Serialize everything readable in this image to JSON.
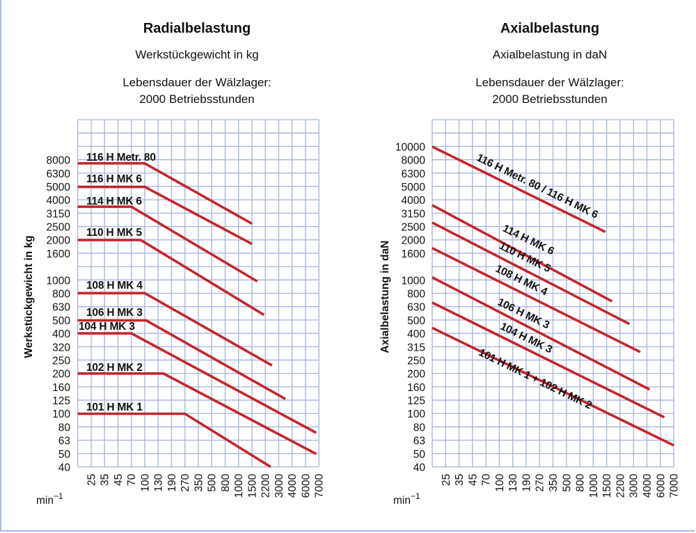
{
  "colors": {
    "grid": "#a3b4da",
    "line": "#c1272d",
    "text": "#111111",
    "frame": "#a9bbdc"
  },
  "chart_data": [
    {
      "type": "line",
      "title": "Radialbelastung",
      "subtitle": "Werkstückgewicht in kg",
      "life_line1": "Lebensdauer der Wälzlager:",
      "life_line2": "2000 Betriebsstunden",
      "ylabel": "Werkstückgewicht in kg",
      "xlabel": "min",
      "xlabel_sup": "−1",
      "y_scale": "log",
      "ylim": [
        40,
        16000
      ],
      "grid": true,
      "x_ticks": [
        "25",
        "35",
        "45",
        "70",
        "100",
        "130",
        "190",
        "270",
        "350",
        "500",
        "800",
        "1000",
        "1500",
        "2200",
        "3000",
        "4000",
        "6000",
        "7000"
      ],
      "y_ticks": [
        "8000",
        "6300",
        "5000",
        "4000",
        "3150",
        "2500",
        "2000",
        "1600",
        "1000",
        "800",
        "630",
        "500",
        "400",
        "320",
        "250",
        "200",
        "160",
        "125",
        "100",
        "80",
        "63",
        "50",
        "40"
      ],
      "series": [
        {
          "name": "116 H Metr. 80",
          "from_axis_start": true,
          "points": [
            [
              100,
              7500
            ],
            [
              1500,
              2650
            ]
          ]
        },
        {
          "name": "116 H MK 6",
          "from_axis_start": true,
          "points": [
            [
              100,
              5000
            ],
            [
              1500,
              1870
            ]
          ]
        },
        {
          "name": "114 H MK 6",
          "from_axis_start": true,
          "points": [
            [
              70,
              3550
            ],
            [
              1780,
              980
            ]
          ]
        },
        {
          "name": "110 H MK 5",
          "from_axis_start": true,
          "points": [
            [
              91,
              2000
            ],
            [
              2130,
              550
            ]
          ]
        },
        {
          "name": "108 H MK 4",
          "from_axis_start": true,
          "points": [
            [
              100,
              800
            ],
            [
              2600,
              230
            ]
          ]
        },
        {
          "name": "106 H MK 3",
          "from_axis_start": true,
          "points": [
            [
              103,
              500
            ],
            [
              3500,
              129
            ]
          ]
        },
        {
          "name": "104 H MK 3",
          "from_axis_start": true,
          "points": [
            [
              70,
              400
            ],
            [
              6800,
              72
            ]
          ]
        },
        {
          "name": "102 H MK 2",
          "from_axis_start": true,
          "points": [
            [
              154,
              200
            ],
            [
              6800,
              50
            ]
          ]
        },
        {
          "name": "101 H MK 1",
          "from_axis_start": true,
          "points": [
            [
              270,
              100
            ],
            [
              2520,
              40
            ]
          ]
        }
      ]
    },
    {
      "type": "line",
      "title": "Axialbelastung",
      "subtitle": "Axialbelastung in daN",
      "life_line1": "Lebensdauer der Wälzlager:",
      "life_line2": "2000 Betriebsstunden",
      "ylabel": "Axialbelastung in daN",
      "xlabel": "min",
      "xlabel_sup": "−1",
      "y_scale": "log",
      "ylim": [
        40,
        16000
      ],
      "grid": true,
      "x_ticks": [
        "25",
        "35",
        "45",
        "70",
        "100",
        "130",
        "190",
        "270",
        "350",
        "500",
        "800",
        "1000",
        "1500",
        "2200",
        "3000",
        "4000",
        "6000",
        "7000"
      ],
      "y_ticks": [
        "10000",
        "8000",
        "6300",
        "5000",
        "4000",
        "3150",
        "2500",
        "2000",
        "1600",
        "1000",
        "800",
        "630",
        "500",
        "400",
        "315",
        "250",
        "200",
        "160",
        "125",
        "100",
        "80",
        "63",
        "50",
        "40"
      ],
      "series": [
        {
          "name": "116 H Metr. 80 / 116 H MK 6",
          "from_axis_start": true,
          "points": [
            [
              1450,
              2300
            ]
          ],
          "start_value": 10000
        },
        {
          "name": "114 H MK 6",
          "from_axis_start": true,
          "points": [
            [
              1780,
              695
            ]
          ],
          "start_value": 3650
        },
        {
          "name": "110 H MK 5",
          "from_axis_start": true,
          "points": [
            [
              2760,
              470
            ]
          ],
          "start_value": 2700
        },
        {
          "name": "108 H MK 4",
          "from_axis_start": true,
          "points": [
            [
              3500,
              290
            ]
          ],
          "start_value": 1740
        },
        {
          "name": "106 H MK 3",
          "from_axis_start": true,
          "points": [
            [
              4400,
              152
            ]
          ],
          "start_value": 1050
        },
        {
          "name": "104 H MK 3",
          "from_axis_start": true,
          "points": [
            [
              6300,
              94
            ]
          ],
          "start_value": 680
        },
        {
          "name": "101 H MK 1 + 102 H MK 2",
          "from_axis_start": true,
          "points": [
            [
              7000,
              58
            ]
          ],
          "start_value": 440
        }
      ]
    }
  ]
}
